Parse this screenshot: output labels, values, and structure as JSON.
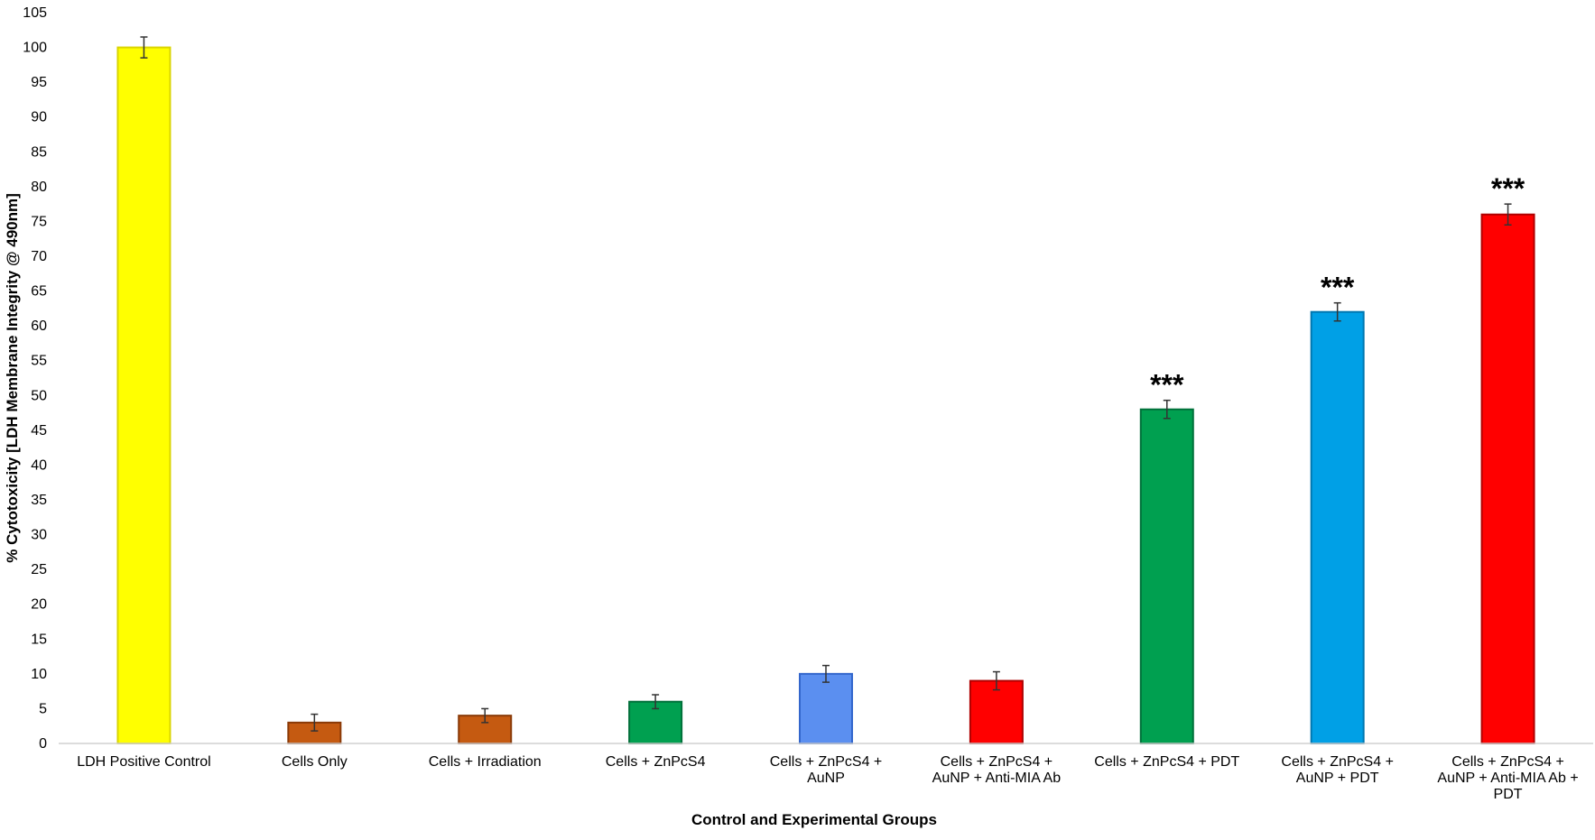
{
  "chart_data": {
    "type": "bar",
    "title": "",
    "xlabel": "Control and Experimental Groups",
    "ylabel": "% Cytotoxicity [LDH Membrane Integrity @ 490nm]",
    "ylim": [
      0,
      105
    ],
    "yticks": [
      0,
      5,
      10,
      15,
      20,
      25,
      30,
      35,
      40,
      45,
      50,
      55,
      60,
      65,
      70,
      75,
      80,
      85,
      90,
      95,
      100,
      105
    ],
    "grid": false,
    "legend": "none",
    "categories": [
      [
        "LDH Positive Control"
      ],
      [
        "Cells Only"
      ],
      [
        "Cells + Irradiation"
      ],
      [
        "Cells + ZnPcS4"
      ],
      [
        "Cells + ZnPcS4 +",
        "AuNP"
      ],
      [
        "Cells + ZnPcS4 +",
        "AuNP + Anti-MIA Ab"
      ],
      [
        "Cells + ZnPcS4 + PDT"
      ],
      [
        "Cells + ZnPcS4 +",
        "AuNP + PDT"
      ],
      [
        "Cells + ZnPcS4 +",
        "AuNP + Anti-MIA Ab +",
        "PDT"
      ]
    ],
    "values": [
      100,
      3,
      4,
      6,
      10,
      9,
      48,
      62,
      76
    ],
    "errors": [
      1.5,
      1.2,
      1.0,
      1.0,
      1.2,
      1.3,
      1.3,
      1.3,
      1.5
    ],
    "significance": [
      "",
      "",
      "",
      "",
      "",
      "",
      "***",
      "***",
      "***"
    ],
    "colors": [
      "#ffff00",
      "#c55a11",
      "#c55a11",
      "#00a050",
      "#5b8ff0",
      "#ff0000",
      "#00a050",
      "#00a0e6",
      "#ff0000"
    ],
    "edge_colors": [
      "#d9d400",
      "#8a3a08",
      "#8a3a08",
      "#00703a",
      "#3366cc",
      "#b00000",
      "#00703a",
      "#0077b0",
      "#b00000"
    ]
  }
}
